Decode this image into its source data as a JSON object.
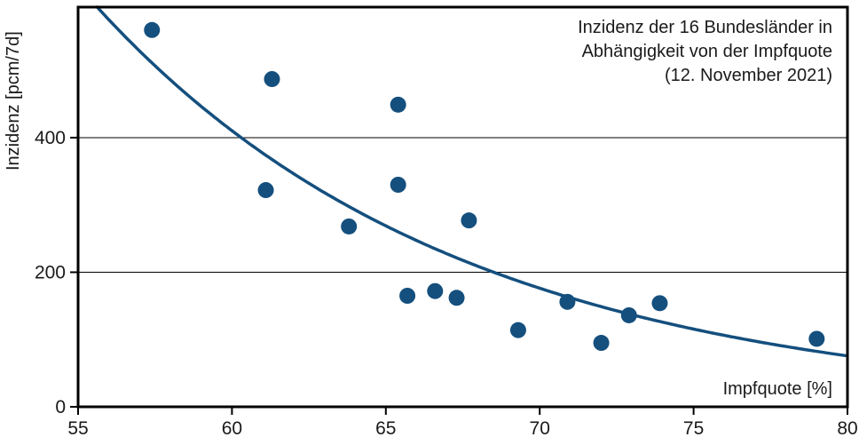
{
  "chart_data": {
    "type": "scatter",
    "title_lines": [
      "Inzidenz der 16 Bundesländer in",
      "Abhängigkeit von der Impfquote",
      "(12. November 2021)"
    ],
    "xlabel": "Impfquote [%]",
    "ylabel": "Inzidenz [pcm/7d]",
    "xlim": [
      55,
      80
    ],
    "ylim": [
      0,
      594
    ],
    "xticks": [
      55,
      60,
      65,
      70,
      75,
      80
    ],
    "yticks": [
      0,
      200,
      400
    ],
    "gridlines_y": [
      200,
      400
    ],
    "grid": "horizontal only",
    "legend": "none",
    "point_color": "#144f7e",
    "curve_color": "#144f7e",
    "axis_color": "#000000",
    "text_color": "#1a1a1a",
    "points": [
      {
        "impfquote": 57.4,
        "inzidenz": 560
      },
      {
        "impfquote": 61.1,
        "inzidenz": 322
      },
      {
        "impfquote": 61.3,
        "inzidenz": 487
      },
      {
        "impfquote": 63.8,
        "inzidenz": 268
      },
      {
        "impfquote": 65.4,
        "inzidenz": 449
      },
      {
        "impfquote": 65.4,
        "inzidenz": 330
      },
      {
        "impfquote": 65.7,
        "inzidenz": 165
      },
      {
        "impfquote": 66.6,
        "inzidenz": 172
      },
      {
        "impfquote": 67.3,
        "inzidenz": 162
      },
      {
        "impfquote": 67.7,
        "inzidenz": 277
      },
      {
        "impfquote": 69.3,
        "inzidenz": 114
      },
      {
        "impfquote": 70.9,
        "inzidenz": 156
      },
      {
        "impfquote": 72.0,
        "inzidenz": 95
      },
      {
        "impfquote": 72.9,
        "inzidenz": 136
      },
      {
        "impfquote": 73.9,
        "inzidenz": 154
      },
      {
        "impfquote": 79.0,
        "inzidenz": 101
      }
    ],
    "trend": {
      "type": "exponential",
      "formula": "y = a * exp(-b * (x - 55))",
      "a": 626,
      "b": 0.0845
    }
  }
}
